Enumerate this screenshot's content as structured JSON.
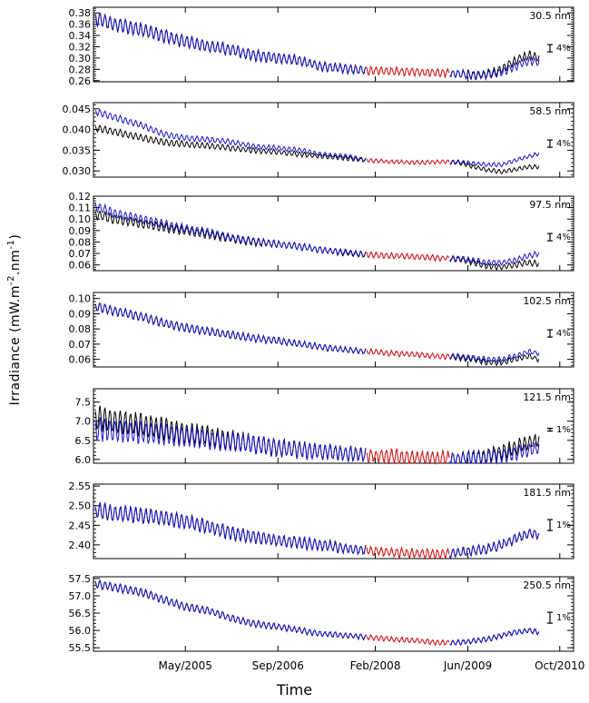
{
  "figure": {
    "ylabel_main": "Irradiance  (mW.m",
    "ylabel_exp1": "-2",
    "ylabel_mid": ".nm",
    "ylabel_exp2": "-1",
    "ylabel_end": ")",
    "xlabel": "Time"
  },
  "colors": {
    "black": "#000000",
    "blue": "#1a14c8",
    "red": "#d01818"
  },
  "chart_data": [
    {
      "type": "line",
      "wavelength": "30.5 nm",
      "error_bar": "4%",
      "ylim": [
        0.258,
        0.39
      ],
      "yticks": [
        0.26,
        0.28,
        0.3,
        0.32,
        0.34,
        0.36,
        0.38
      ],
      "ytick_labels": [
        "0.26",
        "0.28",
        "0.30",
        "0.32",
        "0.34",
        "0.36",
        "0.38"
      ],
      "anchors_x": [
        2004.0,
        2004.3,
        2004.7,
        2005.0,
        2005.3,
        2005.7,
        2006.0,
        2006.3,
        2006.7,
        2007.0,
        2007.3,
        2007.7,
        2008.0,
        2008.3,
        2008.7,
        2009.0,
        2009.3,
        2009.5,
        2009.7,
        2009.9,
        2010.1,
        2010.3,
        2010.45
      ],
      "black": [
        0.372,
        0.36,
        0.35,
        0.34,
        0.33,
        0.32,
        0.315,
        0.305,
        0.3,
        0.295,
        0.285,
        0.28,
        0.278,
        0.277,
        0.275,
        0.274,
        0.272,
        0.27,
        0.272,
        0.28,
        0.295,
        0.305,
        0.3
      ],
      "blue": [
        0.372,
        0.36,
        0.35,
        0.34,
        0.33,
        0.32,
        0.315,
        0.305,
        0.3,
        0.295,
        0.285,
        0.28,
        0.278,
        0.277,
        0.275,
        0.274,
        0.272,
        0.268,
        0.27,
        0.275,
        0.285,
        0.295,
        0.292
      ],
      "osc_amp": 0.012
    },
    {
      "type": "line",
      "wavelength": "58.5 nm",
      "error_bar": "4%",
      "ylim": [
        0.0285,
        0.0465
      ],
      "yticks": [
        0.03,
        0.035,
        0.04,
        0.045
      ],
      "ytick_labels": [
        "0.030",
        "0.035",
        "0.040",
        "0.045"
      ],
      "anchors_x": [
        2004.0,
        2004.3,
        2004.7,
        2005.0,
        2005.3,
        2005.7,
        2006.0,
        2006.3,
        2006.7,
        2007.0,
        2007.3,
        2007.7,
        2008.0,
        2008.3,
        2008.7,
        2009.0,
        2009.3,
        2009.5,
        2009.7,
        2009.9,
        2010.1,
        2010.3,
        2010.45
      ],
      "black": [
        0.0405,
        0.0395,
        0.038,
        0.037,
        0.0365,
        0.036,
        0.0355,
        0.035,
        0.0345,
        0.034,
        0.0335,
        0.033,
        0.0325,
        0.0322,
        0.032,
        0.0322,
        0.032,
        0.031,
        0.0302,
        0.0298,
        0.0303,
        0.031,
        0.031
      ],
      "blue": [
        0.0445,
        0.043,
        0.041,
        0.039,
        0.038,
        0.0375,
        0.037,
        0.036,
        0.0355,
        0.035,
        0.034,
        0.0335,
        0.0325,
        0.0322,
        0.032,
        0.0322,
        0.0322,
        0.0318,
        0.0315,
        0.0315,
        0.0325,
        0.0335,
        0.0342
      ],
      "osc_amp": 0.0008
    },
    {
      "type": "line",
      "wavelength": "97.5 nm",
      "error_bar": "4%",
      "ylim": [
        0.055,
        0.12
      ],
      "yticks": [
        0.06,
        0.07,
        0.08,
        0.09,
        0.1,
        0.11,
        0.12
      ],
      "ytick_labels": [
        "0.06",
        "0.07",
        "0.08",
        "0.09",
        "0.10",
        "0.11",
        "0.12"
      ],
      "anchors_x": [
        2004.0,
        2004.3,
        2004.7,
        2005.0,
        2005.3,
        2005.7,
        2006.0,
        2006.3,
        2006.7,
        2007.0,
        2007.3,
        2007.7,
        2008.0,
        2008.3,
        2008.7,
        2009.0,
        2009.3,
        2009.5,
        2009.7,
        2009.9,
        2010.1,
        2010.3,
        2010.45
      ],
      "black": [
        0.105,
        0.1,
        0.096,
        0.093,
        0.09,
        0.086,
        0.083,
        0.08,
        0.078,
        0.076,
        0.073,
        0.07,
        0.069,
        0.068,
        0.067,
        0.066,
        0.065,
        0.062,
        0.059,
        0.058,
        0.06,
        0.062,
        0.061
      ],
      "blue": [
        0.112,
        0.105,
        0.1,
        0.096,
        0.092,
        0.088,
        0.084,
        0.081,
        0.078,
        0.076,
        0.073,
        0.071,
        0.069,
        0.068,
        0.067,
        0.066,
        0.066,
        0.064,
        0.062,
        0.062,
        0.064,
        0.068,
        0.07
      ],
      "osc_amp": 0.004
    },
    {
      "type": "line",
      "wavelength": "102.5 nm",
      "error_bar": "4%",
      "ylim": [
        0.055,
        0.104
      ],
      "yticks": [
        0.06,
        0.07,
        0.08,
        0.09,
        0.1
      ],
      "ytick_labels": [
        "0.06",
        "0.07",
        "0.08",
        "0.09",
        "0.10"
      ],
      "anchors_x": [
        2004.0,
        2004.3,
        2004.7,
        2005.0,
        2005.3,
        2005.7,
        2006.0,
        2006.3,
        2006.7,
        2007.0,
        2007.3,
        2007.7,
        2008.0,
        2008.3,
        2008.7,
        2009.0,
        2009.3,
        2009.5,
        2009.7,
        2009.9,
        2010.1,
        2010.3,
        2010.45
      ],
      "black": [
        0.095,
        0.092,
        0.088,
        0.084,
        0.081,
        0.078,
        0.076,
        0.074,
        0.072,
        0.07,
        0.068,
        0.066,
        0.065,
        0.064,
        0.063,
        0.062,
        0.061,
        0.06,
        0.058,
        0.058,
        0.06,
        0.062,
        0.06
      ],
      "blue": [
        0.095,
        0.092,
        0.088,
        0.084,
        0.081,
        0.078,
        0.076,
        0.074,
        0.072,
        0.07,
        0.068,
        0.066,
        0.065,
        0.064,
        0.063,
        0.062,
        0.062,
        0.061,
        0.06,
        0.06,
        0.062,
        0.065,
        0.064
      ],
      "osc_amp": 0.003
    },
    {
      "type": "line",
      "wavelength": "121.5 nm",
      "error_bar": "1%",
      "ylim": [
        5.9,
        7.85
      ],
      "yticks": [
        6.0,
        6.5,
        7.0,
        7.5
      ],
      "ytick_labels": [
        "6.0",
        "6.5",
        "7.0",
        "7.5"
      ],
      "anchors_x": [
        2004.0,
        2004.3,
        2004.7,
        2005.0,
        2005.3,
        2005.7,
        2006.0,
        2006.3,
        2006.7,
        2007.0,
        2007.3,
        2007.7,
        2008.0,
        2008.3,
        2008.7,
        2009.0,
        2009.3,
        2009.5,
        2009.7,
        2009.9,
        2010.1,
        2010.3,
        2010.45
      ],
      "black": [
        7.1,
        7.0,
        6.9,
        6.8,
        6.7,
        6.6,
        6.5,
        6.4,
        6.3,
        6.25,
        6.2,
        6.15,
        6.1,
        6.08,
        6.05,
        6.03,
        6.02,
        6.05,
        6.1,
        6.2,
        6.3,
        6.45,
        6.5
      ],
      "blue": [
        6.8,
        6.75,
        6.7,
        6.65,
        6.6,
        6.5,
        6.45,
        6.4,
        6.3,
        6.25,
        6.2,
        6.15,
        6.1,
        6.08,
        6.05,
        6.03,
        6.02,
        6.03,
        6.05,
        6.1,
        6.15,
        6.25,
        6.3
      ],
      "osc_amp": 0.3
    },
    {
      "type": "line",
      "wavelength": "181.5 nm",
      "error_bar": "1%",
      "ylim": [
        2.365,
        2.555
      ],
      "yticks": [
        2.4,
        2.45,
        2.5,
        2.55
      ],
      "ytick_labels": [
        "2.40",
        "2.45",
        "2.50",
        "2.55"
      ],
      "anchors_x": [
        2004.0,
        2004.3,
        2004.7,
        2005.0,
        2005.3,
        2005.7,
        2006.0,
        2006.3,
        2006.7,
        2007.0,
        2007.3,
        2007.7,
        2008.0,
        2008.3,
        2008.7,
        2009.0,
        2009.3,
        2009.5,
        2009.7,
        2009.9,
        2010.1,
        2010.3,
        2010.45
      ],
      "black": [
        2.49,
        2.48,
        2.475,
        2.47,
        2.46,
        2.445,
        2.43,
        2.42,
        2.41,
        2.405,
        2.4,
        2.39,
        2.385,
        2.38,
        2.378,
        2.377,
        2.38,
        2.385,
        2.39,
        2.4,
        2.415,
        2.43,
        2.425
      ],
      "blue": [
        2.49,
        2.48,
        2.475,
        2.47,
        2.46,
        2.445,
        2.43,
        2.42,
        2.41,
        2.405,
        2.4,
        2.39,
        2.385,
        2.38,
        2.378,
        2.377,
        2.38,
        2.385,
        2.39,
        2.4,
        2.415,
        2.43,
        2.425
      ],
      "osc_amp": 0.02
    },
    {
      "type": "line",
      "wavelength": "250.5 nm",
      "error_bar": "1%",
      "ylim": [
        55.4,
        57.55
      ],
      "yticks": [
        55.5,
        56.0,
        56.5,
        57.0,
        57.5
      ],
      "ytick_labels": [
        "55.5",
        "56.0",
        "56.5",
        "57.0",
        "57.5"
      ],
      "anchors_x": [
        2004.0,
        2004.3,
        2004.7,
        2005.0,
        2005.3,
        2005.7,
        2006.0,
        2006.3,
        2006.7,
        2007.0,
        2007.3,
        2007.7,
        2008.0,
        2008.3,
        2008.7,
        2009.0,
        2009.3,
        2009.5,
        2009.7,
        2009.9,
        2010.1,
        2010.3,
        2010.45
      ],
      "black": [
        57.35,
        57.25,
        57.1,
        56.9,
        56.7,
        56.55,
        56.35,
        56.2,
        56.1,
        56.0,
        55.9,
        55.85,
        55.8,
        55.75,
        55.7,
        55.65,
        55.65,
        55.7,
        55.75,
        55.85,
        55.95,
        56.0,
        55.95
      ],
      "blue": [
        57.35,
        57.25,
        57.1,
        56.9,
        56.7,
        56.55,
        56.35,
        56.2,
        56.1,
        56.0,
        55.9,
        55.85,
        55.8,
        55.75,
        55.7,
        55.65,
        55.65,
        55.7,
        55.75,
        55.85,
        55.95,
        56.0,
        55.95
      ],
      "osc_amp": 0.12
    }
  ],
  "x_axis": {
    "xlim": [
      2004.0,
      2010.95
    ],
    "red_segment": [
      2007.95,
      2009.15
    ],
    "ticks": [
      {
        "x": 2005.33,
        "label": "May/2005"
      },
      {
        "x": 2006.67,
        "label": "Sep/2006"
      },
      {
        "x": 2008.08,
        "label": "Feb/2008"
      },
      {
        "x": 2009.42,
        "label": "Jun/2009"
      },
      {
        "x": 2010.75,
        "label": "Oct/2010"
      }
    ]
  }
}
